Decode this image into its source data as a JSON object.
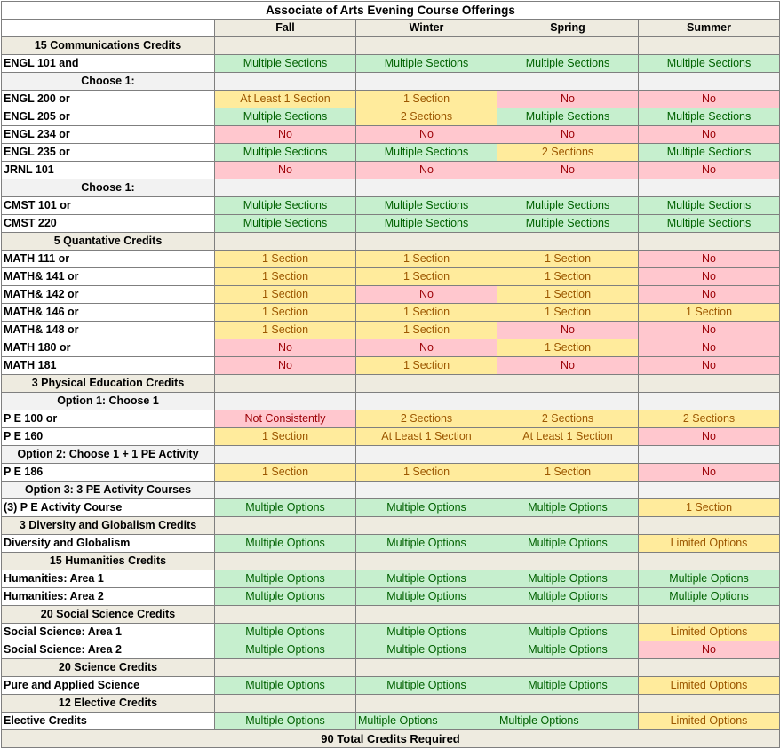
{
  "title": "Associate of Arts Evening Course Offerings",
  "columns": [
    "Fall",
    "Winter",
    "Spring",
    "Summer"
  ],
  "colors": {
    "green_fill": "#c6efce",
    "green_text": "#006100",
    "yellow_fill": "#ffeb9c",
    "yellow_text": "#9c5700",
    "red_fill": "#ffc7ce",
    "red_text": "#9c0006",
    "header_fill": "#eeebe0"
  },
  "rows": [
    {
      "kind": "header",
      "label": "15 Communications Credits"
    },
    {
      "kind": "course",
      "label": "ENGL 101 and",
      "cells": [
        [
          "Multiple Sections",
          "green"
        ],
        [
          "Multiple Sections",
          "green"
        ],
        [
          "Multiple Sections",
          "green"
        ],
        [
          "Multiple Sections",
          "green"
        ]
      ]
    },
    {
      "kind": "sub",
      "label": "Choose 1:"
    },
    {
      "kind": "course",
      "label": "ENGL 200 or",
      "cells": [
        [
          "At Least 1 Section",
          "yellow"
        ],
        [
          "1 Section",
          "yellow"
        ],
        [
          "No",
          "red"
        ],
        [
          "No",
          "red"
        ]
      ]
    },
    {
      "kind": "course",
      "label": "ENGL 205 or",
      "cells": [
        [
          "Multiple Sections",
          "green"
        ],
        [
          "2  Sections",
          "yellow"
        ],
        [
          "Multiple Sections",
          "green"
        ],
        [
          "Multiple Sections",
          "green"
        ]
      ]
    },
    {
      "kind": "course",
      "label": "ENGL 234 or",
      "cells": [
        [
          "No",
          "red"
        ],
        [
          "No",
          "red"
        ],
        [
          "No",
          "red"
        ],
        [
          "No",
          "red"
        ]
      ]
    },
    {
      "kind": "course",
      "label": "ENGL 235 or",
      "cells": [
        [
          "Multiple Sections",
          "green"
        ],
        [
          "Multiple Sections",
          "green"
        ],
        [
          "2 Sections",
          "yellow"
        ],
        [
          "Multiple Sections",
          "green"
        ]
      ]
    },
    {
      "kind": "course",
      "label": "JRNL 101",
      "cells": [
        [
          "No",
          "red"
        ],
        [
          "No",
          "red"
        ],
        [
          "No",
          "red"
        ],
        [
          "No",
          "red"
        ]
      ]
    },
    {
      "kind": "sub",
      "label": "Choose 1:"
    },
    {
      "kind": "course",
      "label": "CMST 101 or",
      "cells": [
        [
          "Multiple Sections",
          "green"
        ],
        [
          "Multiple Sections",
          "green"
        ],
        [
          "Multiple Sections",
          "green"
        ],
        [
          "Multiple Sections",
          "green"
        ]
      ]
    },
    {
      "kind": "course",
      "label": "CMST 220",
      "cells": [
        [
          "Multiple Sections",
          "green"
        ],
        [
          "Multiple Sections",
          "green"
        ],
        [
          "Multiple Sections",
          "green"
        ],
        [
          "Multiple Sections",
          "green"
        ]
      ]
    },
    {
      "kind": "header",
      "label": "5 Quantative Credits"
    },
    {
      "kind": "course",
      "label": "MATH 111 or",
      "cells": [
        [
          "1 Section",
          "yellow"
        ],
        [
          "1 Section",
          "yellow"
        ],
        [
          "1 Section",
          "yellow"
        ],
        [
          "No",
          "red"
        ]
      ]
    },
    {
      "kind": "course",
      "label": "MATH& 141 or",
      "cells": [
        [
          "1 Section",
          "yellow"
        ],
        [
          "1 Section",
          "yellow"
        ],
        [
          "1 Section",
          "yellow"
        ],
        [
          "No",
          "red"
        ]
      ]
    },
    {
      "kind": "course",
      "label": "MATH& 142 or",
      "cells": [
        [
          "1 Section",
          "yellow"
        ],
        [
          "No",
          "red"
        ],
        [
          "1 Section",
          "yellow"
        ],
        [
          "No",
          "red"
        ]
      ]
    },
    {
      "kind": "course",
      "label": "MATH& 146 or",
      "cells": [
        [
          "1 Section",
          "yellow"
        ],
        [
          "1 Section",
          "yellow"
        ],
        [
          "1 Section",
          "yellow"
        ],
        [
          "1 Section",
          "yellow"
        ]
      ]
    },
    {
      "kind": "course",
      "label": "MATH& 148 or",
      "cells": [
        [
          "1 Section",
          "yellow"
        ],
        [
          "1 Section",
          "yellow"
        ],
        [
          "No",
          "red"
        ],
        [
          "No",
          "red"
        ]
      ]
    },
    {
      "kind": "course",
      "label": "MATH 180 or",
      "cells": [
        [
          "No",
          "red"
        ],
        [
          "No",
          "red"
        ],
        [
          "1 Section",
          "yellow"
        ],
        [
          "No",
          "red"
        ]
      ]
    },
    {
      "kind": "course",
      "label": "MATH 181",
      "cells": [
        [
          "No",
          "red"
        ],
        [
          "1 Section",
          "yellow"
        ],
        [
          "No",
          "red"
        ],
        [
          "No",
          "red"
        ]
      ]
    },
    {
      "kind": "header",
      "label": "3 Physical Education Credits"
    },
    {
      "kind": "sub",
      "label": "Option 1: Choose 1"
    },
    {
      "kind": "course",
      "label": "P E 100 or",
      "cells": [
        [
          "Not Consistently",
          "red"
        ],
        [
          "2 Sections",
          "yellow"
        ],
        [
          "2 Sections",
          "yellow"
        ],
        [
          "2 Sections",
          "yellow"
        ]
      ]
    },
    {
      "kind": "course",
      "label": "P E 160",
      "cells": [
        [
          "1 Section",
          "yellow"
        ],
        [
          "At Least 1 Section",
          "yellow"
        ],
        [
          "At Least 1 Section",
          "yellow"
        ],
        [
          "No",
          "red"
        ]
      ]
    },
    {
      "kind": "sub",
      "label": "Option 2: Choose 1 + 1 PE Activity"
    },
    {
      "kind": "course",
      "label": "P E 186",
      "cells": [
        [
          "1 Section",
          "yellow"
        ],
        [
          "1 Section",
          "yellow"
        ],
        [
          "1 Section",
          "yellow"
        ],
        [
          "No",
          "red"
        ]
      ]
    },
    {
      "kind": "sub",
      "label": "Option 3: 3 PE Activity Courses"
    },
    {
      "kind": "course",
      "label": "(3) P E Activity Course",
      "cells": [
        [
          "Multiple Options",
          "green"
        ],
        [
          "Multiple Options",
          "green"
        ],
        [
          "Multiple Options",
          "green"
        ],
        [
          "1 Section",
          "yellow"
        ]
      ]
    },
    {
      "kind": "header",
      "label": "3 Diversity and Globalism Credits"
    },
    {
      "kind": "course",
      "label": "Diversity and Globalism",
      "cells": [
        [
          "Multiple Options",
          "green"
        ],
        [
          "Multiple Options",
          "green"
        ],
        [
          "Multiple Options",
          "green"
        ],
        [
          "Limited Options",
          "yellow"
        ]
      ]
    },
    {
      "kind": "header",
      "label": "15 Humanities Credits"
    },
    {
      "kind": "course",
      "label": "Humanities: Area 1",
      "cells": [
        [
          "Multiple Options",
          "green"
        ],
        [
          "Multiple Options",
          "green"
        ],
        [
          "Multiple Options",
          "green"
        ],
        [
          "Multiple Options",
          "green"
        ]
      ]
    },
    {
      "kind": "course",
      "label": "Humanities: Area 2",
      "cells": [
        [
          "Multiple Options",
          "green"
        ],
        [
          "Multiple Options",
          "green"
        ],
        [
          "Multiple Options",
          "green"
        ],
        [
          "Multiple Options",
          "green"
        ]
      ]
    },
    {
      "kind": "header",
      "label": "20 Social Science Credits"
    },
    {
      "kind": "course",
      "label": "Social Science: Area 1",
      "cells": [
        [
          "Multiple Options",
          "green"
        ],
        [
          "Multiple Options",
          "green"
        ],
        [
          "Multiple Options",
          "green"
        ],
        [
          "Limited Options",
          "yellow"
        ]
      ]
    },
    {
      "kind": "course",
      "label": "Social Science: Area 2",
      "cells": [
        [
          "Multiple Options",
          "green"
        ],
        [
          "Multiple Options",
          "green"
        ],
        [
          "Multiple Options",
          "green"
        ],
        [
          "No",
          "red"
        ]
      ]
    },
    {
      "kind": "header",
      "label": "20 Science Credits"
    },
    {
      "kind": "course",
      "label": "Pure and Applied Science",
      "cells": [
        [
          "Multiple Options",
          "green"
        ],
        [
          "Multiple Options",
          "green"
        ],
        [
          "Multiple Options",
          "green"
        ],
        [
          "Limited Options",
          "yellow"
        ]
      ]
    },
    {
      "kind": "header",
      "label": "12 Elective Credits"
    },
    {
      "kind": "course",
      "label": "Elective Credits",
      "align": [
        "center",
        "left",
        "left",
        "center"
      ],
      "cells": [
        [
          "Multiple Options",
          "green"
        ],
        [
          "Multiple Options",
          "green"
        ],
        [
          "Multiple Options",
          "green"
        ],
        [
          "Limited Options",
          "yellow"
        ]
      ]
    }
  ],
  "footer": "90 Total Credits Required"
}
